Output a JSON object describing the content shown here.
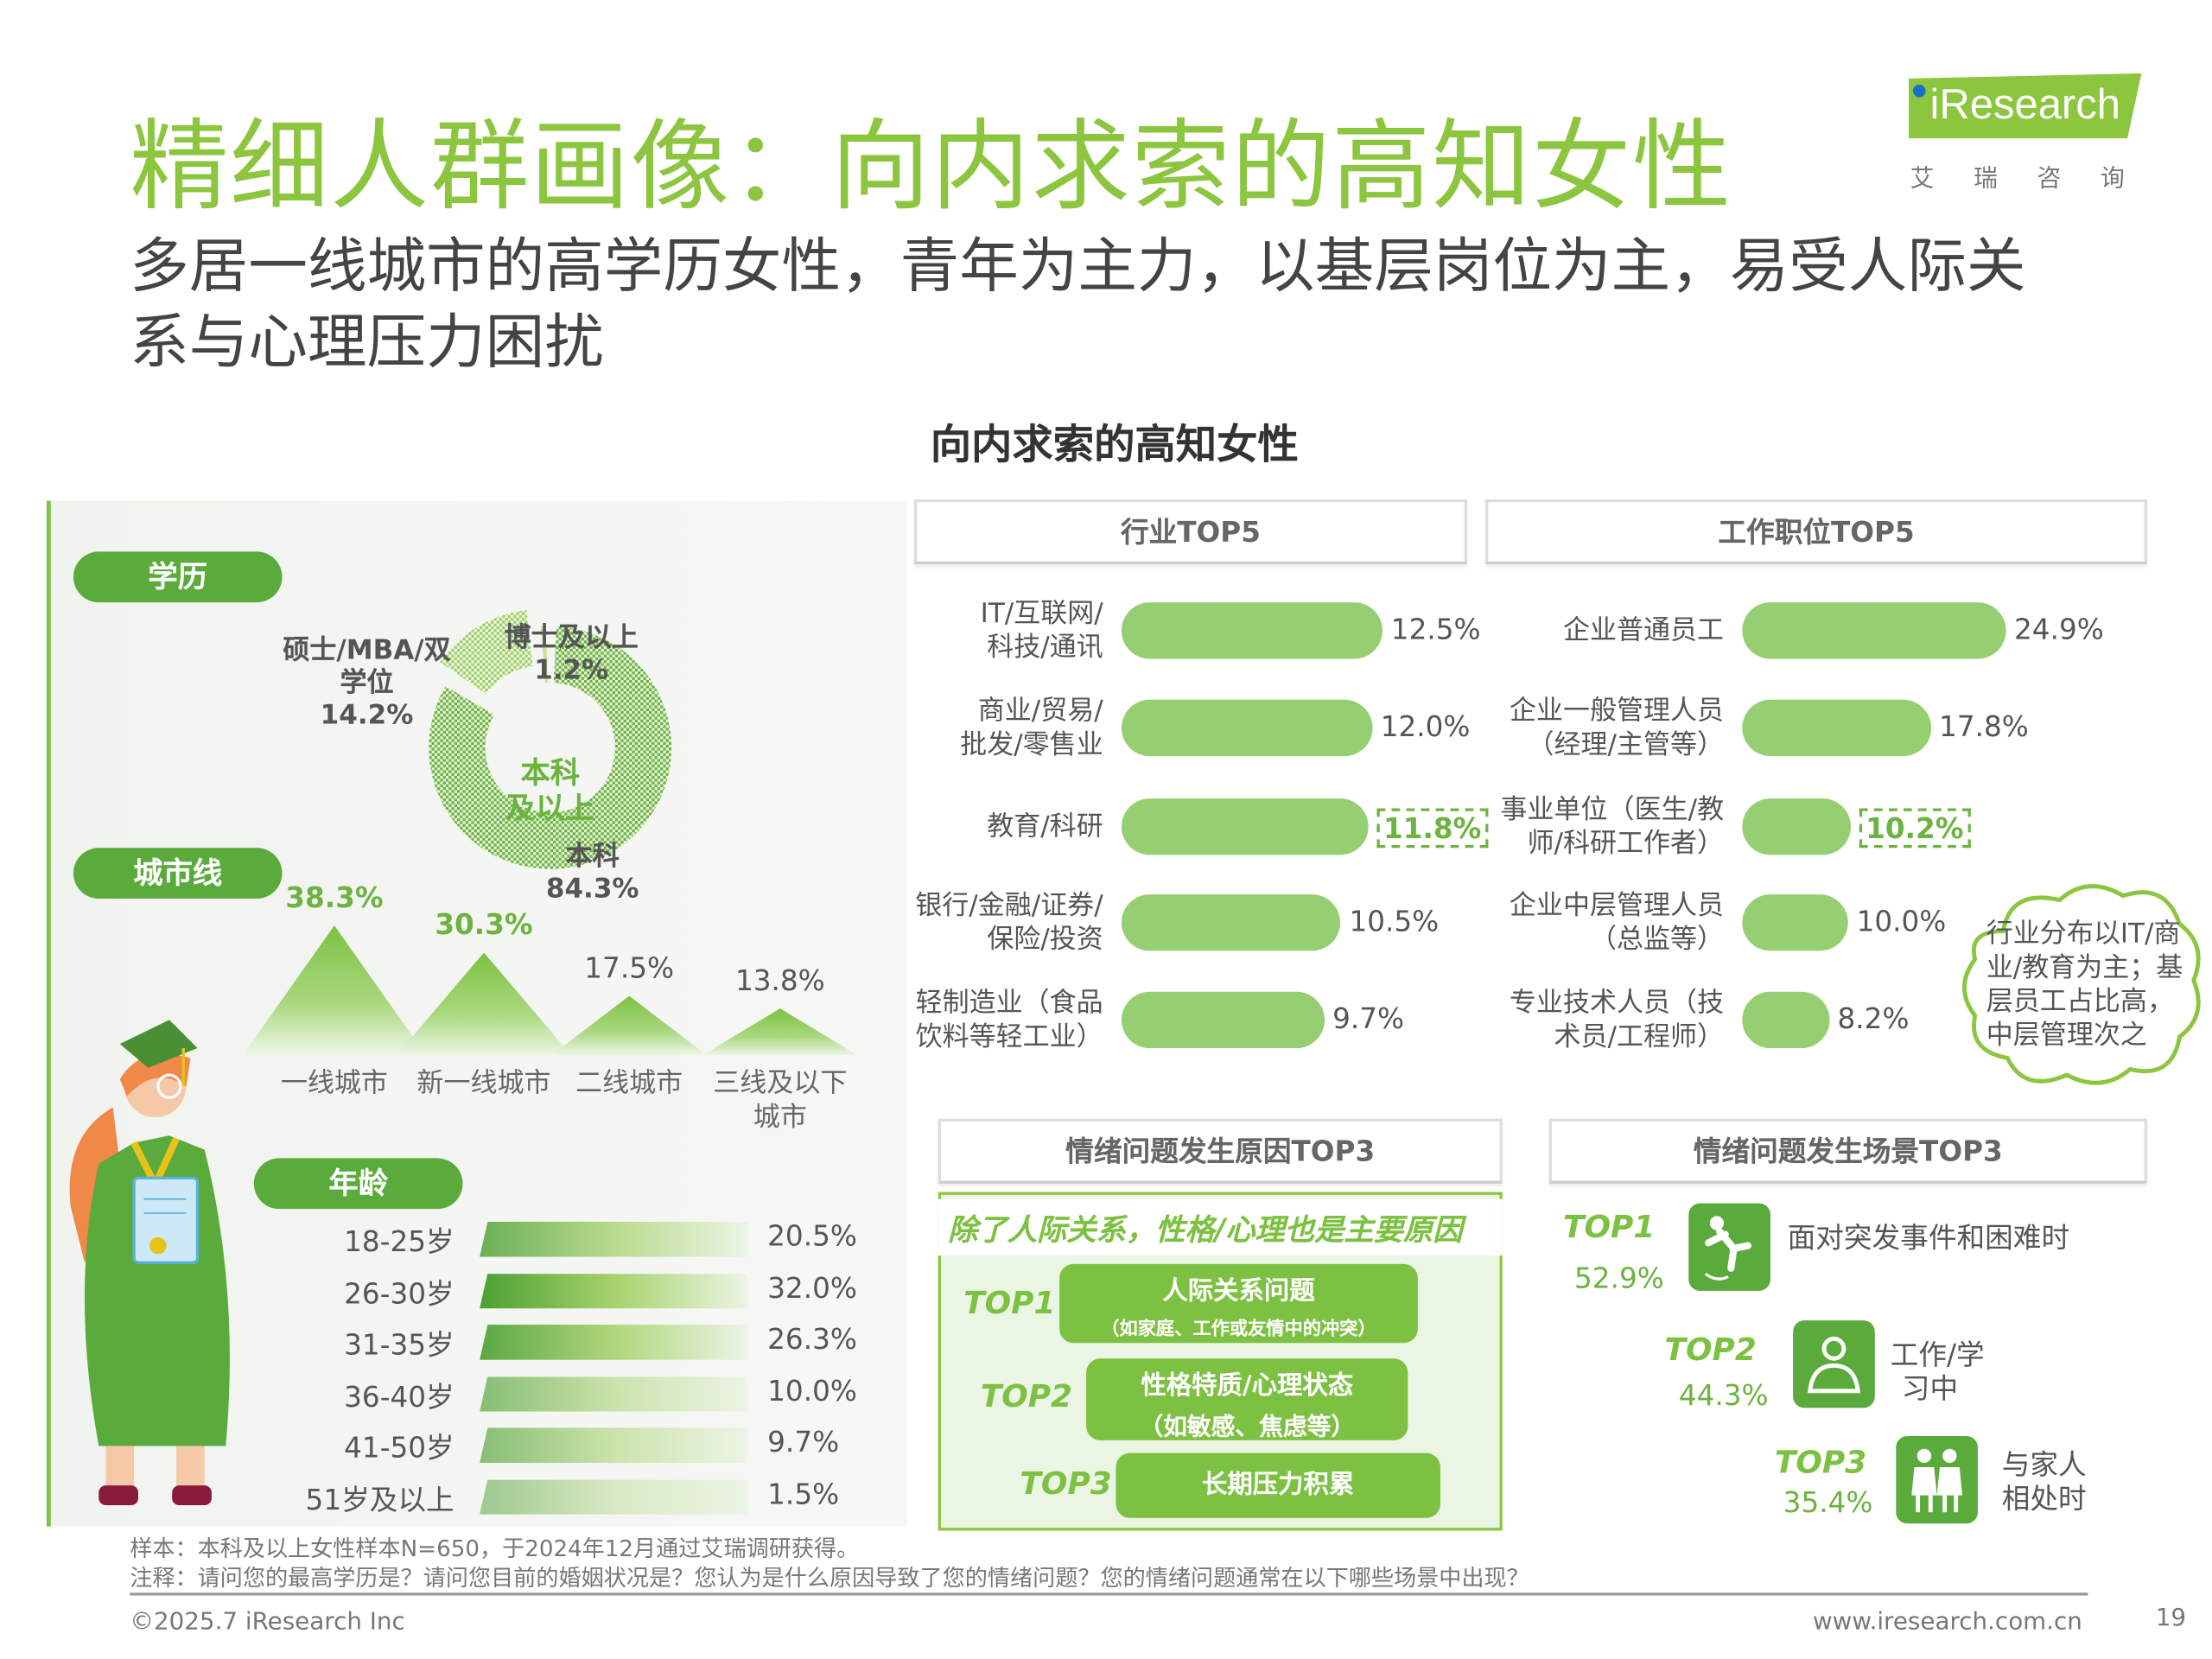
{
  "title": "精细人群画像：向内求索的高知女性",
  "subtitle": "多居一线城市的高学历女性，青年为主力，以基层岗位为主，易受人际关系与心理压力困扰",
  "logo": {
    "brand": "iResearch",
    "cn": "艾瑞咨询"
  },
  "center_title": "向内求索的高知女性",
  "colors": {
    "title_green": "#8cc63f",
    "pill_green": "#5aab3c",
    "bar_green": "#95cf72",
    "accent_green": "#6cb33f"
  },
  "education": {
    "label": "学历",
    "center_label": "本科及以上",
    "center_line1": "本科",
    "center_line2": "及以上",
    "slices": [
      {
        "name": "本科",
        "value": "84.3%",
        "pct": 84.3
      },
      {
        "name": "硕士/MBA/双学位",
        "name_l1": "硕士/MBA/双",
        "name_l2": "学位",
        "value": "14.2%",
        "pct": 14.2
      },
      {
        "name": "博士及以上",
        "value": "1.2%",
        "pct": 1.2
      }
    ]
  },
  "city": {
    "label": "城市线",
    "items": [
      {
        "name": "一线城市",
        "value": "38.3%",
        "pct": 38.3
      },
      {
        "name": "新一线城市",
        "value": "30.3%",
        "pct": 30.3
      },
      {
        "name": "二线城市",
        "value": "17.5%",
        "pct": 17.5
      },
      {
        "name_l1": "三线及以下",
        "name_l2": "城市",
        "value": "13.8%",
        "pct": 13.8
      }
    ]
  },
  "age": {
    "label": "年龄",
    "items": [
      {
        "name": "18-25岁",
        "value": "20.5%",
        "pct": 20.5
      },
      {
        "name": "26-30岁",
        "value": "32.0%",
        "pct": 32.0
      },
      {
        "name": "31-35岁",
        "value": "26.3%",
        "pct": 26.3
      },
      {
        "name": "36-40岁",
        "value": "10.0%",
        "pct": 10.0
      },
      {
        "name": "41-50岁",
        "value": "9.7%",
        "pct": 9.7
      },
      {
        "name": "51岁及以上",
        "value": "1.5%",
        "pct": 1.5
      }
    ]
  },
  "industry": {
    "header": "行业TOP5",
    "items": [
      {
        "l1": "IT/互联网/",
        "l2": "科技/通讯",
        "value": "12.5%",
        "pct": 12.5
      },
      {
        "l1": "商业/贸易/",
        "l2": "批发/零售业",
        "value": "12.0%",
        "pct": 12.0
      },
      {
        "l1": "教育/科研",
        "l2": "",
        "value": "11.8%",
        "pct": 11.8,
        "highlight": true
      },
      {
        "l1": "银行/金融/证券/",
        "l2": "保险/投资",
        "value": "10.5%",
        "pct": 10.5
      },
      {
        "l1": "轻制造业（食品",
        "l2": "饮料等轻工业）",
        "value": "9.7%",
        "pct": 9.7
      }
    ]
  },
  "position": {
    "header": "工作职位TOP5",
    "items": [
      {
        "l1": "企业普通员工",
        "l2": "",
        "value": "24.9%",
        "pct": 24.9
      },
      {
        "l1": "企业一般管理人员",
        "l2": "（经理/主管等）",
        "value": "17.8%",
        "pct": 17.8
      },
      {
        "l1": "事业单位（医生/教",
        "l2": "师/科研工作者）",
        "value": "10.2%",
        "pct": 10.2,
        "highlight": true
      },
      {
        "l1": "企业中层管理人员",
        "l2": "（总监等）",
        "value": "10.0%",
        "pct": 10.0
      },
      {
        "l1": "专业技术人员（技",
        "l2": "术员/工程师）",
        "value": "8.2%",
        "pct": 8.2
      }
    ]
  },
  "callout": "行业分布以IT/商业/教育为主；基层员工占比高，中层管理次之",
  "reasons": {
    "header": "情绪问题发生原因TOP3",
    "headline": "除了人际关系，性格/心理也是主要原因",
    "items": [
      {
        "rank": "TOP1",
        "l1": "人际关系问题",
        "l2": "（如家庭、工作或友情中的冲突）"
      },
      {
        "rank": "TOP2",
        "l1": "性格特质/心理状态",
        "l2": "（如敏感、焦虑等）"
      },
      {
        "rank": "TOP3",
        "l1": "长期压力积累",
        "l2": ""
      }
    ]
  },
  "scenes": {
    "header": "情绪问题发生场景TOP3",
    "items": [
      {
        "rank": "TOP1",
        "value": "52.9%",
        "l1": "面对突发事件和困难时",
        "l2": "",
        "icon": "falling-person-icon"
      },
      {
        "rank": "TOP2",
        "value": "44.3%",
        "l1": "工作/学",
        "l2": "习中",
        "icon": "worker-icon"
      },
      {
        "rank": "TOP3",
        "value": "35.4%",
        "l1": "与家人",
        "l2": "相处时",
        "icon": "family-icon"
      }
    ]
  },
  "notes": {
    "sample": "样本：本科及以上女性样本N=650，于2024年12月通过艾瑞调研获得。",
    "note": "注释：请问您的最高学历是？请问您目前的婚姻状况是？您认为是什么原因导致了您的情绪问题？您的情绪问题通常在以下哪些场景中出现？"
  },
  "footer": {
    "copyright": "©2025.7 iResearch Inc",
    "url": "www.iresearch.com.cn",
    "page": "19"
  }
}
